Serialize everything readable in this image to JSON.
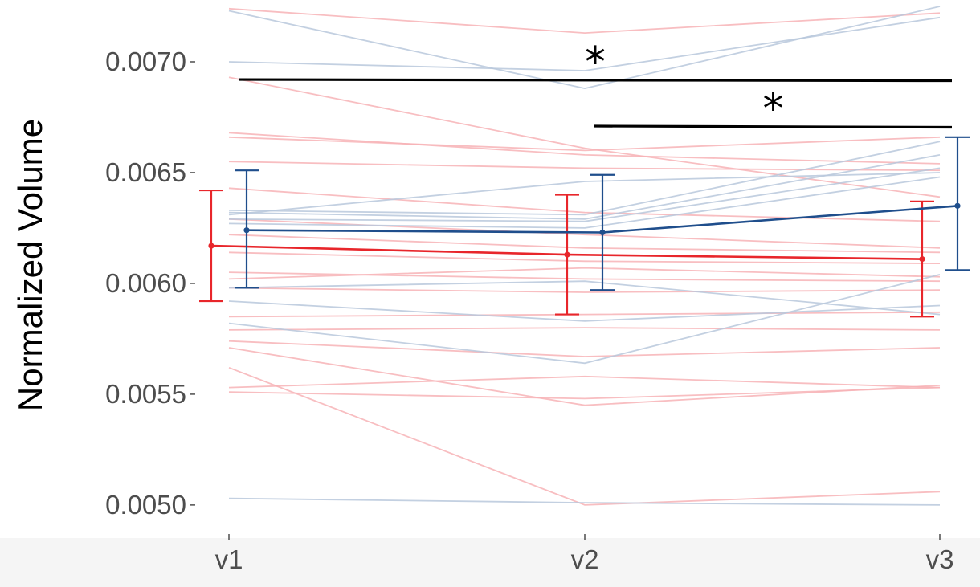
{
  "chart_data": {
    "type": "line",
    "title": "",
    "xlabel": "",
    "ylabel": "Normalized Volume",
    "categories": [
      "v1",
      "v2",
      "v3"
    ],
    "ylim": [
      0.00488,
      0.00725
    ],
    "yticks": [
      {
        "value": 0.005,
        "label": "0.0050"
      },
      {
        "value": 0.0055,
        "label": "0.0055"
      },
      {
        "value": 0.006,
        "label": "0.0060"
      },
      {
        "value": 0.0065,
        "label": "0.0065"
      },
      {
        "value": 0.007,
        "label": "0.0070"
      }
    ],
    "grid": false,
    "legend": "none",
    "colors": {
      "red": "#e8262b",
      "blue": "#1f4e8c",
      "red_light": "#f7b3b6",
      "blue_light": "#b9c8dc",
      "sig_line": "#000000"
    },
    "series": [
      {
        "group": "red",
        "mean": [
          0.00617,
          0.00613,
          0.00611
        ],
        "lower": [
          0.00592,
          0.00586,
          0.00585
        ],
        "upper": [
          0.00642,
          0.0064,
          0.00637
        ]
      },
      {
        "group": "blue",
        "mean": [
          0.00624,
          0.00623,
          0.00635
        ],
        "lower": [
          0.00598,
          0.00597,
          0.00606
        ],
        "upper": [
          0.00651,
          0.00649,
          0.00666
        ]
      }
    ],
    "individuals": {
      "red": [
        [
          0.00693,
          0.00661,
          0.00639
        ],
        [
          0.00668,
          0.00658,
          0.00654
        ],
        [
          0.00666,
          0.0066,
          0.00666
        ],
        [
          0.00655,
          0.00652,
          0.00651
        ],
        [
          0.00643,
          0.00632,
          0.00628
        ],
        [
          0.00629,
          0.00622,
          0.00616
        ],
        [
          0.00622,
          0.00616,
          0.00614
        ],
        [
          0.00614,
          0.0061,
          0.00609
        ],
        [
          0.00605,
          0.00602,
          0.00601
        ],
        [
          0.00602,
          0.00607,
          0.00603
        ],
        [
          0.00598,
          0.00596,
          0.00597
        ],
        [
          0.00585,
          0.00586,
          0.00587
        ],
        [
          0.00579,
          0.0058,
          0.00579
        ],
        [
          0.00574,
          0.00567,
          0.00571
        ],
        [
          0.00571,
          0.00545,
          0.00554
        ],
        [
          0.00562,
          0.005,
          0.00506
        ],
        [
          0.00553,
          0.00558,
          0.00553
        ],
        [
          0.00551,
          0.00548,
          0.00553
        ],
        [
          0.00724,
          0.00713,
          0.00722
        ]
      ],
      "blue": [
        [
          0.00723,
          0.00688,
          0.00725
        ],
        [
          0.007,
          0.00696,
          0.0072
        ],
        [
          0.00633,
          0.00631,
          0.00664
        ],
        [
          0.00632,
          0.00629,
          0.00658
        ],
        [
          0.00631,
          0.00646,
          0.0065
        ],
        [
          0.00629,
          0.00628,
          0.00652
        ],
        [
          0.00627,
          0.00625,
          0.00648
        ],
        [
          0.00598,
          0.00601,
          0.00586
        ],
        [
          0.00592,
          0.00583,
          0.0059
        ],
        [
          0.00582,
          0.00564,
          0.00604
        ],
        [
          0.00503,
          0.00501,
          0.005
        ]
      ]
    },
    "significance": [
      {
        "from": "v1",
        "to": "v3",
        "y": 0.00692,
        "label": "*"
      },
      {
        "from": "v2",
        "to": "v3",
        "y": 0.00671,
        "label": "*"
      }
    ]
  }
}
